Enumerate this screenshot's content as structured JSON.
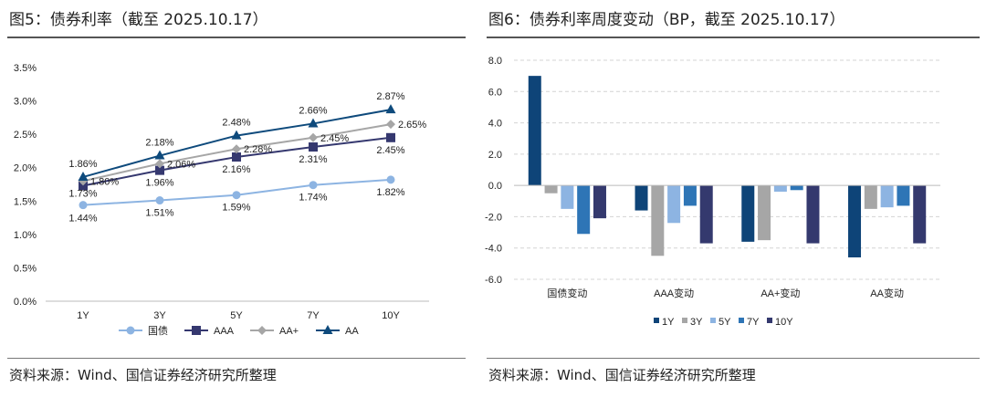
{
  "left": {
    "title": "图5：债券利率（截至 2025.10.17）",
    "source": "资料来源：Wind、国信证券经济研究所整理"
  },
  "right": {
    "title": "图6：债券利率周度变动（BP，截至 2025.10.17）",
    "source": "资料来源：Wind、国信证券经济研究所整理"
  },
  "chart_data": [
    {
      "type": "line",
      "categories": [
        "1Y",
        "3Y",
        "5Y",
        "7Y",
        "10Y"
      ],
      "ylim": [
        0,
        3.5
      ],
      "yticks": [
        "0.0%",
        "0.5%",
        "1.0%",
        "1.5%",
        "2.0%",
        "2.5%",
        "3.0%",
        "3.5%"
      ],
      "grid": false,
      "legend": "bottom",
      "series": [
        {
          "name": "国债",
          "values": [
            1.44,
            1.51,
            1.59,
            1.74,
            1.82
          ],
          "labels": [
            "1.44%",
            "1.51%",
            "1.59%",
            "1.74%",
            "1.82%"
          ],
          "color": "#8db4e2",
          "marker": "circle"
        },
        {
          "name": "AAA",
          "values": [
            1.73,
            1.96,
            2.16,
            2.31,
            2.45
          ],
          "labels": [
            "1.73%",
            "1.96%",
            "2.16%",
            "2.31%",
            "2.45%"
          ],
          "color": "#35386f",
          "marker": "square"
        },
        {
          "name": "AA+",
          "values": [
            1.8,
            2.06,
            2.28,
            2.45,
            2.65
          ],
          "labels": [
            "1.80%",
            "2.06%",
            "2.28%",
            "2.45%",
            "2.65%"
          ],
          "color": "#a6a6a6",
          "marker": "diamond"
        },
        {
          "name": "AA",
          "values": [
            1.86,
            2.18,
            2.48,
            2.66,
            2.87
          ],
          "labels": [
            "1.86%",
            "2.18%",
            "2.48%",
            "2.66%",
            "2.87%"
          ],
          "color": "#0e4a7c",
          "marker": "triangle"
        }
      ]
    },
    {
      "type": "bar",
      "categories": [
        "国债变动",
        "AAA变动",
        "AA+变动",
        "AA变动"
      ],
      "ylim": [
        -6,
        8
      ],
      "yticks": [
        "-6.0",
        "-4.0",
        "-2.0",
        "0.0",
        "2.0",
        "4.0",
        "6.0",
        "8.0"
      ],
      "grid": true,
      "legend": "bottom",
      "series": [
        {
          "name": "1Y",
          "values": [
            7.0,
            -1.6,
            -3.6,
            -4.6
          ],
          "color": "#0e4478"
        },
        {
          "name": "3Y",
          "values": [
            -0.5,
            -4.5,
            -3.5,
            -1.5
          ],
          "color": "#a6a6a6"
        },
        {
          "name": "5Y",
          "values": [
            -1.5,
            -2.4,
            -0.4,
            -1.4
          ],
          "color": "#8db4e2"
        },
        {
          "name": "7Y",
          "values": [
            -3.1,
            -1.3,
            -0.3,
            -1.3
          ],
          "color": "#2e75b6"
        },
        {
          "name": "10Y",
          "values": [
            -2.1,
            -3.7,
            -3.7,
            -3.7
          ],
          "color": "#34396e"
        }
      ]
    }
  ]
}
